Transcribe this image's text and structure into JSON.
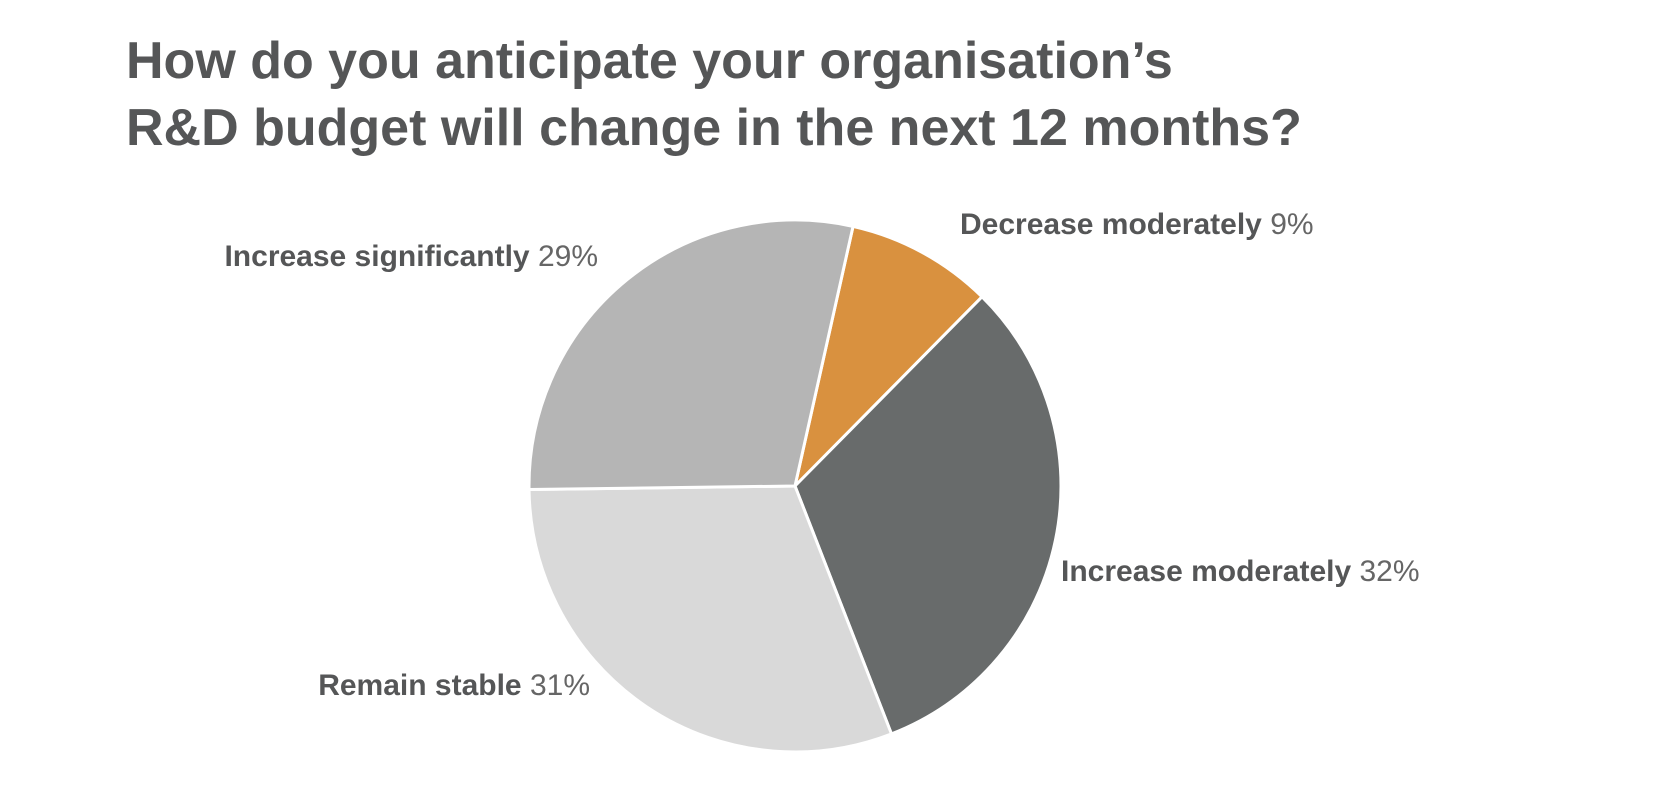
{
  "chart_data": {
    "type": "pie",
    "title": [
      "How do you anticipate your organisation’s",
      "R&D budget will change in the next 12 months?"
    ],
    "categories": [
      "Decrease moderately",
      "Increase moderately",
      "Remain stable",
      "Increase significantly"
    ],
    "values": [
      9,
      32,
      31,
      29
    ],
    "value_labels": [
      "9%",
      "32%",
      "31%",
      "29%"
    ],
    "colors": [
      "#d9913f",
      "#686b6b",
      "#d9d9d9",
      "#b5b5b5"
    ]
  }
}
